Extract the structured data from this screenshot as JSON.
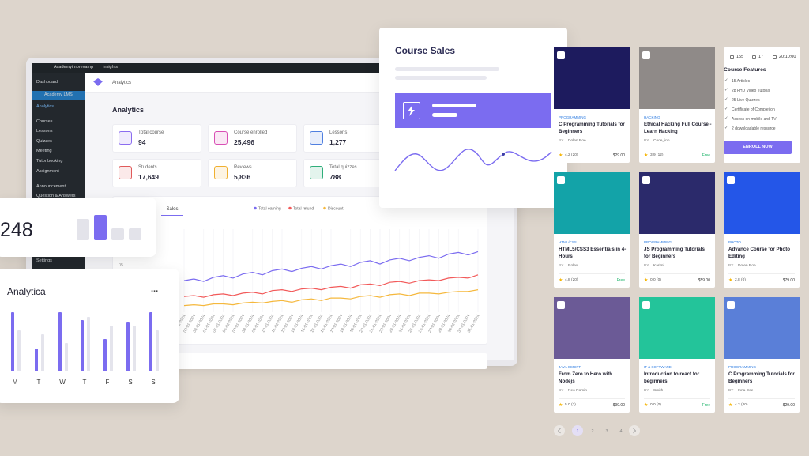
{
  "topbar": {
    "site": "Academyimorevamp",
    "insights": "Insights"
  },
  "sidebar": {
    "items": [
      "Dashboard",
      "Academy LMS",
      "Analytics",
      "Courses",
      "Lessons",
      "Quizzes",
      "Meeting",
      "Tutor booking",
      "Assignment",
      "Announcement",
      "Question & Answers",
      "Settings"
    ]
  },
  "breadcrumb": "Analytics",
  "page_title": "Analytics",
  "stats": [
    {
      "label": "Total course",
      "value": "94"
    },
    {
      "label": "Course enrolled",
      "value": "25,496"
    },
    {
      "label": "Lessons",
      "value": "1,277"
    },
    {
      "label": "Students",
      "value": "17,649"
    },
    {
      "label": "Reviews",
      "value": "5,836"
    },
    {
      "label": "Total quizzes",
      "value": "788"
    }
  ],
  "sales_chart": {
    "type": "line",
    "tab": "Sales",
    "y_axis_label": "05",
    "x": [
      "01-01-2024",
      "02-01-2024",
      "03-01-2024",
      "04-01-2024",
      "05-01-2024",
      "06-01-2024",
      "07-01-2024",
      "08-01-2024",
      "09-01-2024",
      "10-01-2024",
      "11-01-2024",
      "12-01-2024",
      "13-01-2024",
      "14-01-2024",
      "15-01-2024",
      "16-01-2024",
      "17-01-2024",
      "18-01-2024",
      "19-01-2024",
      "20-01-2024",
      "21-01-2024",
      "22-01-2024",
      "23-01-2024",
      "24-01-2024",
      "25-01-2024",
      "26-01-2024",
      "27-01-2024",
      "28-01-2024",
      "29-01-2024",
      "30-01-2024",
      "31-01-2024"
    ],
    "ylim": [
      0,
      100
    ],
    "series": [
      {
        "name": "Total earning",
        "color": "#7b6cf0",
        "values": [
          38,
          40,
          37,
          42,
          44,
          41,
          46,
          48,
          45,
          50,
          52,
          49,
          53,
          55,
          52,
          56,
          58,
          55,
          60,
          62,
          58,
          63,
          65,
          62,
          66,
          68,
          65,
          70,
          72,
          69,
          73
        ]
      },
      {
        "name": "Total refund",
        "color": "#f25a5a",
        "values": [
          19,
          20,
          18,
          21,
          22,
          20,
          23,
          24,
          22,
          26,
          27,
          25,
          28,
          29,
          27,
          30,
          31,
          29,
          33,
          34,
          32,
          36,
          37,
          35,
          38,
          39,
          38,
          41,
          42,
          41,
          45
        ]
      },
      {
        "name": "Discount",
        "color": "#f5b83d",
        "values": [
          8,
          9,
          8,
          10,
          10,
          9,
          11,
          12,
          11,
          13,
          14,
          12,
          15,
          16,
          14,
          17,
          17,
          16,
          19,
          20,
          18,
          21,
          22,
          20,
          23,
          23,
          22,
          24,
          25,
          25,
          27
        ]
      }
    ]
  },
  "course_sales_card": {
    "title": "Course Sales"
  },
  "counter_card": {
    "value": "248"
  },
  "weekly_chart": {
    "type": "bar",
    "title": "Analytica",
    "menu": "...",
    "categories": [
      "M",
      "T",
      "W",
      "T",
      "F",
      "S",
      "S"
    ],
    "ylim": [
      0,
      75
    ],
    "series": [
      {
        "color": "#7b6cf0",
        "values": [
          75,
          29,
          75,
          65,
          41,
          62,
          75
        ]
      },
      {
        "color": "#e4e4ec",
        "values": [
          52,
          47,
          36,
          69,
          58,
          58,
          52
        ]
      }
    ]
  },
  "by_label": "BY",
  "courses": [
    {
      "category": "PROGRAMMING",
      "title": "C Programming Tutorials for Beginners",
      "author": "Dolen Roe",
      "rating": "4.2 (20)",
      "price": "$29.00"
    },
    {
      "category": "HACKING",
      "title": "Ethical Hacking Full Course - Learn Hacking",
      "author": "Code_inn",
      "rating": "3.9 (12)",
      "price": "Free"
    },
    {
      "category": "HTML/CSS",
      "title": "HTML5/CSS3 Essentials in 4-Hours",
      "author": "Rolax",
      "rating": "4.8 (20)",
      "price": "Free"
    },
    {
      "category": "PROGRAMMING",
      "title": "JS Programming Tutorials for Beginners",
      "author": "Karimi",
      "rating": "0.0 (0)",
      "price": "$59.00"
    },
    {
      "category": "PHOTO",
      "title": "Advance Course for Photo Editing",
      "author": "Dolen Roe",
      "rating": "2.8 (0)",
      "price": "$79.00"
    },
    {
      "category": "JAVA SCRIPT",
      "title": "From Zero to Hero with Nodejs",
      "author": "Neo Romin",
      "rating": "5.0 (3)",
      "price": "$99.00"
    },
    {
      "category": "IT & SOFTWARE",
      "title": "Introduction to react for beginners",
      "author": "Smith",
      "rating": "0.0 (0)",
      "price": "Free"
    },
    {
      "category": "PROGRAMMING",
      "title": "C Programming Tutorials for Beginners",
      "author": "Inna Doe",
      "rating": "4.2 (20)",
      "price": "$29.00"
    }
  ],
  "features": {
    "meta": [
      "155",
      "17",
      "20:10:00"
    ],
    "heading": "Course Features",
    "items": [
      "15 Articles",
      "28 FHD Video Tutorial",
      "25 Live Quizzes",
      "Certificate of Completion",
      "Access on mobile and TV",
      "2 downloadable ressurce"
    ],
    "button": "ENROLL NOW"
  },
  "pagination": [
    "1",
    "2",
    "3",
    "4"
  ]
}
